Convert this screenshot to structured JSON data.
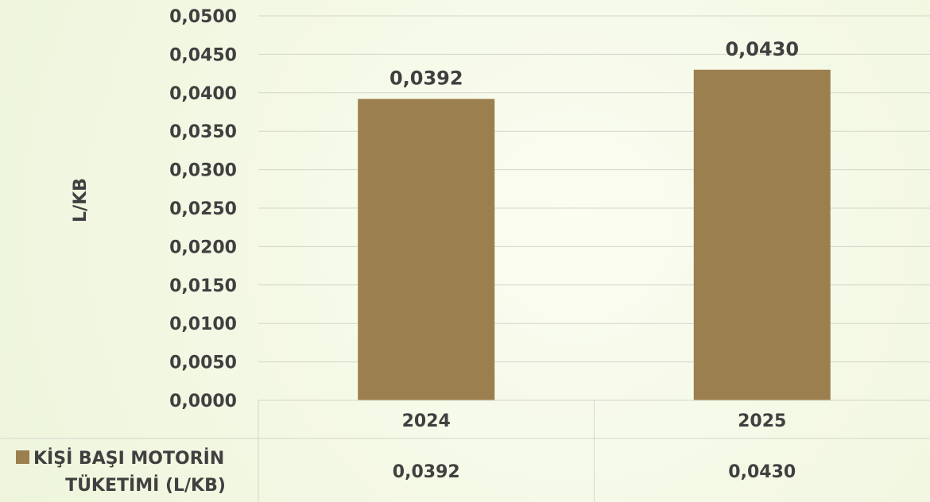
{
  "chart_data": {
    "type": "bar",
    "categories": [
      "2024",
      "2025"
    ],
    "series": [
      {
        "name": "KİŞİ BAŞI MOTORİN TÜKETİMİ (L/KB)",
        "values": [
          0.0392,
          0.043
        ],
        "value_labels": [
          "0,0392",
          "0,0430"
        ],
        "color": "#9c7f4e"
      }
    ],
    "ylabel": "L/KB",
    "ylim": [
      0,
      0.05
    ],
    "yticks": [
      "0,0000",
      "0,0050",
      "0,0100",
      "0,0150",
      "0,0200",
      "0,0250",
      "0,0300",
      "0,0350",
      "0,0400",
      "0,0450",
      "0,0500"
    ],
    "grid": true,
    "data_table": {
      "legend_lines": [
        "KİŞİ BAŞI MOTORİN",
        "TÜKETİMİ (L/KB)"
      ],
      "values": [
        "0,0392",
        "0,0430"
      ]
    }
  }
}
